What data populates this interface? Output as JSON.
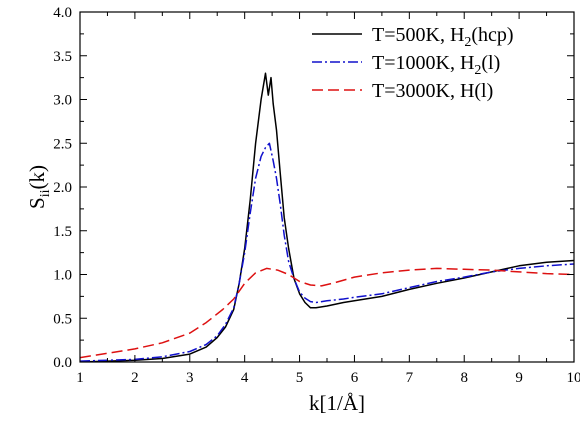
{
  "chart_data": {
    "type": "line",
    "title": "",
    "xlabel": "k[1/Å]",
    "ylabel_main": "S",
    "ylabel_sub": "ii",
    "ylabel_tail": "(k)",
    "xlim": [
      1,
      10
    ],
    "ylim": [
      0.0,
      4.0
    ],
    "xticks": [
      1,
      2,
      3,
      4,
      5,
      6,
      7,
      8,
      9,
      10
    ],
    "yticks": [
      0.0,
      0.5,
      1.0,
      1.5,
      2.0,
      2.5,
      3.0,
      3.5,
      4.0
    ],
    "xtick_labels": [
      "1",
      "2",
      "3",
      "4",
      "5",
      "6",
      "7",
      "8",
      "9",
      "10"
    ],
    "ytick_labels": [
      "0.0",
      "0.5",
      "1.0",
      "1.5",
      "2.0",
      "2.5",
      "3.0",
      "3.5",
      "4.0"
    ],
    "grid": false,
    "legend_placement": "top-right",
    "series": [
      {
        "legend_main": "T=500K, H",
        "legend_sub": "2",
        "legend_tail": "(hcp)",
        "color": "#000000",
        "dash": "solid",
        "x": [
          1.0,
          2.0,
          2.5,
          3.0,
          3.3,
          3.5,
          3.65,
          3.8,
          3.9,
          4.0,
          4.1,
          4.2,
          4.3,
          4.38,
          4.43,
          4.48,
          4.52,
          4.58,
          4.65,
          4.72,
          4.8,
          4.9,
          5.0,
          5.1,
          5.2,
          5.3,
          5.5,
          5.8,
          6.0,
          6.5,
          7.0,
          7.5,
          8.0,
          8.5,
          9.0,
          9.5,
          10.0
        ],
        "y": [
          0.0,
          0.02,
          0.04,
          0.09,
          0.17,
          0.28,
          0.4,
          0.6,
          0.9,
          1.3,
          1.85,
          2.5,
          3.0,
          3.3,
          3.05,
          3.25,
          2.95,
          2.65,
          2.15,
          1.65,
          1.3,
          0.95,
          0.78,
          0.68,
          0.62,
          0.62,
          0.64,
          0.68,
          0.7,
          0.75,
          0.83,
          0.9,
          0.96,
          1.03,
          1.1,
          1.14,
          1.16
        ]
      },
      {
        "legend_main": "T=1000K, H",
        "legend_sub": "2",
        "legend_tail": "(l)",
        "color": "#1010cc",
        "dash": "dashdot",
        "x": [
          1.0,
          2.0,
          2.5,
          3.0,
          3.3,
          3.5,
          3.65,
          3.8,
          3.9,
          4.0,
          4.1,
          4.2,
          4.3,
          4.38,
          4.45,
          4.52,
          4.58,
          4.65,
          4.72,
          4.8,
          4.9,
          5.0,
          5.1,
          5.2,
          5.3,
          5.5,
          5.8,
          6.0,
          6.5,
          7.0,
          7.5,
          8.0,
          8.5,
          9.0,
          9.5,
          10.0
        ],
        "y": [
          0.01,
          0.03,
          0.06,
          0.12,
          0.2,
          0.3,
          0.43,
          0.62,
          0.9,
          1.25,
          1.7,
          2.1,
          2.35,
          2.45,
          2.5,
          2.3,
          2.1,
          1.8,
          1.45,
          1.15,
          0.95,
          0.8,
          0.73,
          0.69,
          0.68,
          0.7,
          0.72,
          0.74,
          0.78,
          0.85,
          0.92,
          0.97,
          1.03,
          1.07,
          1.1,
          1.12
        ]
      },
      {
        "legend_main": "T=3000K, H(l)",
        "legend_sub": "",
        "legend_tail": "",
        "color": "#dd1111",
        "dash": "dashed",
        "x": [
          1.0,
          1.5,
          2.0,
          2.5,
          3.0,
          3.3,
          3.6,
          3.8,
          4.0,
          4.2,
          4.4,
          4.6,
          4.8,
          5.0,
          5.2,
          5.4,
          5.6,
          6.0,
          6.5,
          7.0,
          7.5,
          8.0,
          8.5,
          9.0,
          9.5,
          10.0
        ],
        "y": [
          0.05,
          0.1,
          0.15,
          0.22,
          0.33,
          0.45,
          0.6,
          0.72,
          0.9,
          1.02,
          1.07,
          1.05,
          1.0,
          0.92,
          0.88,
          0.87,
          0.9,
          0.97,
          1.02,
          1.05,
          1.07,
          1.06,
          1.05,
          1.03,
          1.01,
          1.0
        ]
      }
    ]
  }
}
